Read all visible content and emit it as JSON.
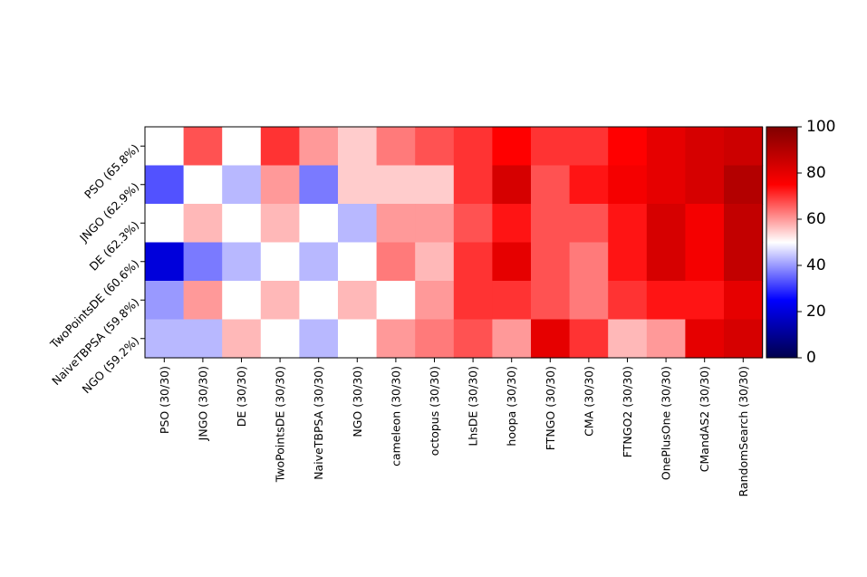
{
  "chart_data": {
    "type": "heatmap",
    "title": "",
    "xlabel": "",
    "ylabel": "",
    "rows": [
      "PSO (65.8%)",
      "JNGO (62.9%)",
      "DE (62.3%)",
      "TwoPointsDE (60.6%)",
      "NaiveTBPSA (59.8%)",
      "NGO (59.2%)"
    ],
    "columns": [
      "PSO (30/30)",
      "JNGO (30/30)",
      "DE (30/30)",
      "TwoPointsDE (30/30)",
      "NaiveTBPSA (30/30)",
      "NGO (30/30)",
      "cameleon (30/30)",
      "octopus (30/30)",
      "LhsDE (30/30)",
      "hoopa (30/30)",
      "FTNGO (30/30)",
      "CMA (30/30)",
      "FTNGO2 (30/30)",
      "OnePlusOne (30/30)",
      "CMandAS2 (30/30)",
      "RandomSearch (30/30)"
    ],
    "values": [
      [
        50,
        67,
        50,
        70,
        60,
        55,
        63,
        67,
        70,
        75,
        70,
        70,
        75,
        80,
        83,
        85
      ],
      [
        33,
        50,
        43,
        60,
        37,
        55,
        55,
        55,
        70,
        83,
        67,
        73,
        77,
        80,
        83,
        90
      ],
      [
        50,
        57,
        50,
        57,
        50,
        43,
        60,
        60,
        67,
        73,
        67,
        67,
        73,
        83,
        77,
        87
      ],
      [
        20,
        37,
        43,
        50,
        43,
        50,
        63,
        57,
        70,
        80,
        67,
        63,
        73,
        83,
        77,
        87
      ],
      [
        40,
        60,
        50,
        57,
        50,
        57,
        50,
        60,
        70,
        70,
        67,
        63,
        70,
        73,
        73,
        80
      ],
      [
        43,
        43,
        57,
        50,
        43,
        50,
        60,
        63,
        67,
        60,
        80,
        70,
        57,
        60,
        80,
        83
      ]
    ],
    "colormap": "seismic",
    "colorbar": {
      "min": 0,
      "max": 100,
      "ticks": [
        "0",
        "20",
        "40",
        "60",
        "80",
        "100"
      ]
    }
  }
}
